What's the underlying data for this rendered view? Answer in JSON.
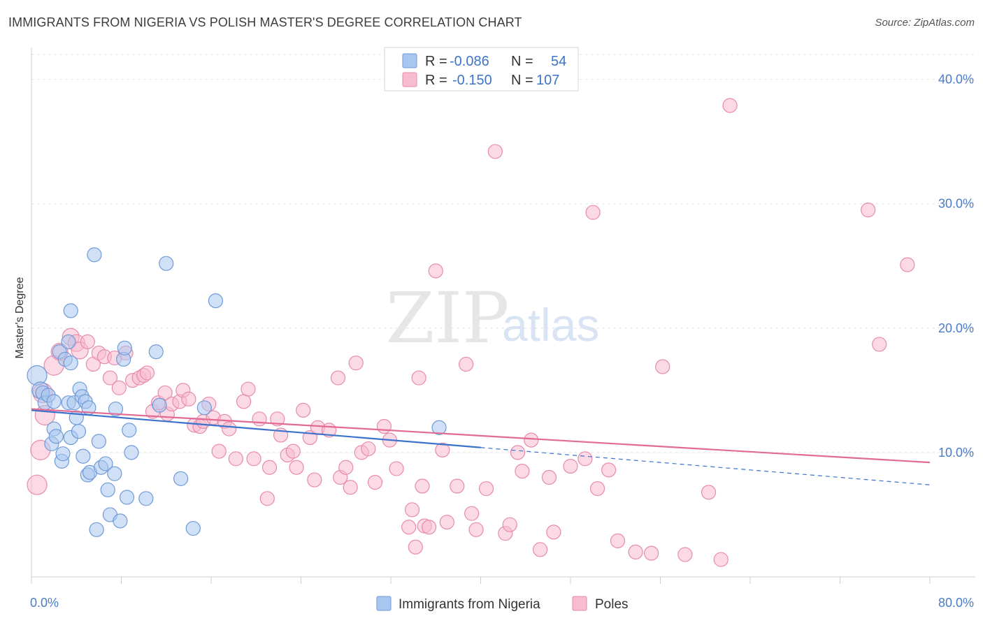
{
  "title": "IMMIGRANTS FROM NIGERIA VS POLISH MASTER'S DEGREE CORRELATION CHART",
  "source": "Source: ZipAtlas.com",
  "watermark": {
    "zip": "ZIP",
    "atlas": "atlas"
  },
  "legend": {
    "rows": [
      {
        "r_label": "R = ",
        "r_value": "-0.086",
        "n_label": "N = ",
        "n_value": "54",
        "color": "#a9c6ee",
        "stroke": "#6f9ad8"
      },
      {
        "r_label": "R = ",
        "r_value": "-0.150",
        "n_label": "N = ",
        "n_value": "107",
        "color": "#f7bcd0",
        "stroke": "#e88aaa"
      }
    ]
  },
  "bottom_legend": [
    {
      "label": "Immigrants from Nigeria",
      "color": "#a9c6ee",
      "stroke": "#6f9ad8"
    },
    {
      "label": "Poles",
      "color": "#f7bcd0",
      "stroke": "#e88aaa"
    }
  ],
  "chart_data": {
    "type": "scatter",
    "xlabel": "",
    "ylabel": "Master's Degree",
    "xlim": [
      0,
      80
    ],
    "ylim": [
      0,
      42
    ],
    "x_tick_labels": [
      "0.0%",
      "80.0%"
    ],
    "y_ticks": [
      10,
      20,
      30,
      40
    ],
    "y_tick_labels": [
      "10.0%",
      "20.0%",
      "30.0%",
      "40.0%"
    ],
    "grid": true,
    "series": [
      {
        "name": "Immigrants from Nigeria",
        "color": "#a9c6ee",
        "stroke": "#6f9ad8",
        "trend": {
          "x0": 0,
          "y0": 13.4,
          "x1": 40,
          "y1": 10.4,
          "dash_to_x": 80,
          "dash_to_y": 7.4,
          "color": "#3a72cc"
        },
        "points": [
          [
            0.5,
            16.2,
            14
          ],
          [
            0.8,
            15.0,
            12
          ],
          [
            1.0,
            14.8,
            10
          ],
          [
            1.2,
            14.0,
            10
          ],
          [
            1.5,
            14.6,
            10
          ],
          [
            2.0,
            11.9,
            10
          ],
          [
            1.8,
            10.7,
            10
          ],
          [
            2.2,
            11.3,
            10
          ],
          [
            2.0,
            14.1,
            10
          ],
          [
            2.5,
            18.1,
            10
          ],
          [
            2.7,
            9.3,
            10
          ],
          [
            2.8,
            9.9,
            10
          ],
          [
            3.0,
            17.5,
            10
          ],
          [
            3.3,
            14.0,
            10
          ],
          [
            3.3,
            18.9,
            10
          ],
          [
            3.5,
            17.2,
            10
          ],
          [
            3.5,
            11.2,
            10
          ],
          [
            3.5,
            21.4,
            10
          ],
          [
            3.8,
            14.0,
            10
          ],
          [
            4.0,
            12.8,
            10
          ],
          [
            4.2,
            11.7,
            10
          ],
          [
            4.3,
            15.1,
            10
          ],
          [
            4.5,
            14.5,
            10
          ],
          [
            4.6,
            9.7,
            10
          ],
          [
            4.8,
            14.1,
            10
          ],
          [
            5.0,
            8.2,
            10
          ],
          [
            5.1,
            13.6,
            10
          ],
          [
            5.2,
            8.4,
            10
          ],
          [
            5.6,
            25.9,
            10
          ],
          [
            5.8,
            3.8,
            10
          ],
          [
            6.0,
            10.9,
            10
          ],
          [
            6.2,
            8.8,
            10
          ],
          [
            6.6,
            9.1,
            10
          ],
          [
            6.8,
            7.0,
            10
          ],
          [
            7.0,
            5.0,
            10
          ],
          [
            7.4,
            8.3,
            10
          ],
          [
            7.5,
            13.5,
            10
          ],
          [
            7.9,
            4.5,
            10
          ],
          [
            8.2,
            17.5,
            10
          ],
          [
            8.3,
            18.4,
            10
          ],
          [
            8.5,
            6.4,
            10
          ],
          [
            8.7,
            11.8,
            10
          ],
          [
            8.9,
            10.0,
            10
          ],
          [
            10.2,
            6.3,
            10
          ],
          [
            11.1,
            18.1,
            10
          ],
          [
            11.4,
            13.8,
            10
          ],
          [
            12.0,
            25.2,
            10
          ],
          [
            13.3,
            7.9,
            10
          ],
          [
            14.4,
            3.9,
            10
          ],
          [
            15.4,
            13.6,
            10
          ],
          [
            16.4,
            22.2,
            10
          ],
          [
            36.3,
            12.0,
            10
          ]
        ]
      },
      {
        "name": "Poles",
        "color": "#f7bcd0",
        "stroke": "#e88aaa",
        "trend": {
          "x0": 0,
          "y0": 13.5,
          "x1": 80,
          "y1": 9.2,
          "color": "#e26b94"
        },
        "points": [
          [
            0.5,
            7.4,
            14
          ],
          [
            0.8,
            10.2,
            14
          ],
          [
            1.0,
            14.8,
            14
          ],
          [
            1.2,
            13.0,
            14
          ],
          [
            2.0,
            17.0,
            14
          ],
          [
            2.5,
            18.1,
            12
          ],
          [
            3.5,
            19.3,
            12
          ],
          [
            4.0,
            18.8,
            12
          ],
          [
            4.3,
            18.2,
            12
          ],
          [
            5.0,
            18.9,
            10
          ],
          [
            5.5,
            17.1,
            10
          ],
          [
            6.0,
            18.0,
            10
          ],
          [
            6.5,
            17.7,
            10
          ],
          [
            7.0,
            16.0,
            10
          ],
          [
            7.4,
            17.6,
            10
          ],
          [
            7.8,
            15.2,
            10
          ],
          [
            8.4,
            18.0,
            10
          ],
          [
            9.0,
            15.8,
            10
          ],
          [
            9.6,
            16.0,
            10
          ],
          [
            10.0,
            16.2,
            10
          ],
          [
            10.3,
            16.4,
            10
          ],
          [
            10.8,
            13.3,
            10
          ],
          [
            11.3,
            14.0,
            10
          ],
          [
            11.9,
            14.8,
            10
          ],
          [
            12.1,
            13.1,
            10
          ],
          [
            12.5,
            13.9,
            10
          ],
          [
            13.2,
            14.1,
            10
          ],
          [
            13.5,
            15.0,
            10
          ],
          [
            14.0,
            14.3,
            10
          ],
          [
            14.5,
            12.2,
            10
          ],
          [
            15.0,
            12.1,
            10
          ],
          [
            15.3,
            12.5,
            10
          ],
          [
            15.8,
            13.9,
            10
          ],
          [
            16.2,
            12.8,
            10
          ],
          [
            16.7,
            10.1,
            10
          ],
          [
            17.2,
            12.5,
            10
          ],
          [
            17.6,
            11.9,
            10
          ],
          [
            18.2,
            9.5,
            10
          ],
          [
            18.9,
            14.1,
            10
          ],
          [
            19.3,
            15.1,
            10
          ],
          [
            19.8,
            9.5,
            10
          ],
          [
            20.3,
            12.7,
            10
          ],
          [
            21.0,
            6.3,
            10
          ],
          [
            21.2,
            8.8,
            10
          ],
          [
            21.9,
            12.7,
            10
          ],
          [
            22.2,
            11.4,
            10
          ],
          [
            22.8,
            9.8,
            10
          ],
          [
            23.3,
            10.1,
            10
          ],
          [
            23.6,
            8.8,
            10
          ],
          [
            24.2,
            13.4,
            10
          ],
          [
            24.8,
            11.2,
            10
          ],
          [
            25.2,
            7.8,
            10
          ],
          [
            25.5,
            12.0,
            10
          ],
          [
            26.5,
            11.8,
            10
          ],
          [
            27.3,
            16.0,
            10
          ],
          [
            27.5,
            8.0,
            10
          ],
          [
            28.0,
            8.8,
            10
          ],
          [
            28.4,
            7.2,
            10
          ],
          [
            28.9,
            17.2,
            10
          ],
          [
            29.4,
            10.0,
            10
          ],
          [
            30.0,
            10.3,
            10
          ],
          [
            30.6,
            7.6,
            10
          ],
          [
            31.4,
            12.1,
            10
          ],
          [
            31.9,
            11.0,
            10
          ],
          [
            32.5,
            8.7,
            10
          ],
          [
            33.6,
            4.0,
            10
          ],
          [
            33.9,
            5.4,
            10
          ],
          [
            34.2,
            2.4,
            10
          ],
          [
            34.5,
            16.0,
            10
          ],
          [
            34.8,
            7.3,
            10
          ],
          [
            35.0,
            4.1,
            10
          ],
          [
            35.4,
            4.0,
            10
          ],
          [
            36.0,
            24.6,
            10
          ],
          [
            36.6,
            10.2,
            10
          ],
          [
            37.0,
            4.4,
            10
          ],
          [
            37.9,
            7.3,
            10
          ],
          [
            38.7,
            17.1,
            10
          ],
          [
            39.2,
            5.1,
            10
          ],
          [
            39.6,
            3.8,
            10
          ],
          [
            40.5,
            7.1,
            10
          ],
          [
            41.3,
            34.2,
            10
          ],
          [
            42.2,
            3.5,
            10
          ],
          [
            42.6,
            4.2,
            10
          ],
          [
            43.3,
            10.0,
            10
          ],
          [
            43.7,
            8.5,
            10
          ],
          [
            44.5,
            11.0,
            10
          ],
          [
            45.3,
            2.2,
            10
          ],
          [
            46.1,
            8.0,
            10
          ],
          [
            46.5,
            3.6,
            10
          ],
          [
            48.0,
            8.9,
            10
          ],
          [
            49.3,
            9.5,
            10
          ],
          [
            50.0,
            29.3,
            10
          ],
          [
            50.4,
            7.1,
            10
          ],
          [
            51.4,
            8.6,
            10
          ],
          [
            52.2,
            2.9,
            10
          ],
          [
            53.8,
            2.0,
            10
          ],
          [
            55.2,
            1.9,
            10
          ],
          [
            56.2,
            16.9,
            10
          ],
          [
            58.2,
            1.8,
            10
          ],
          [
            60.3,
            6.8,
            10
          ],
          [
            61.4,
            1.4,
            10
          ],
          [
            62.2,
            37.9,
            10
          ],
          [
            74.5,
            29.5,
            10
          ],
          [
            75.5,
            18.7,
            10
          ],
          [
            78.0,
            25.1,
            10
          ]
        ]
      }
    ]
  }
}
